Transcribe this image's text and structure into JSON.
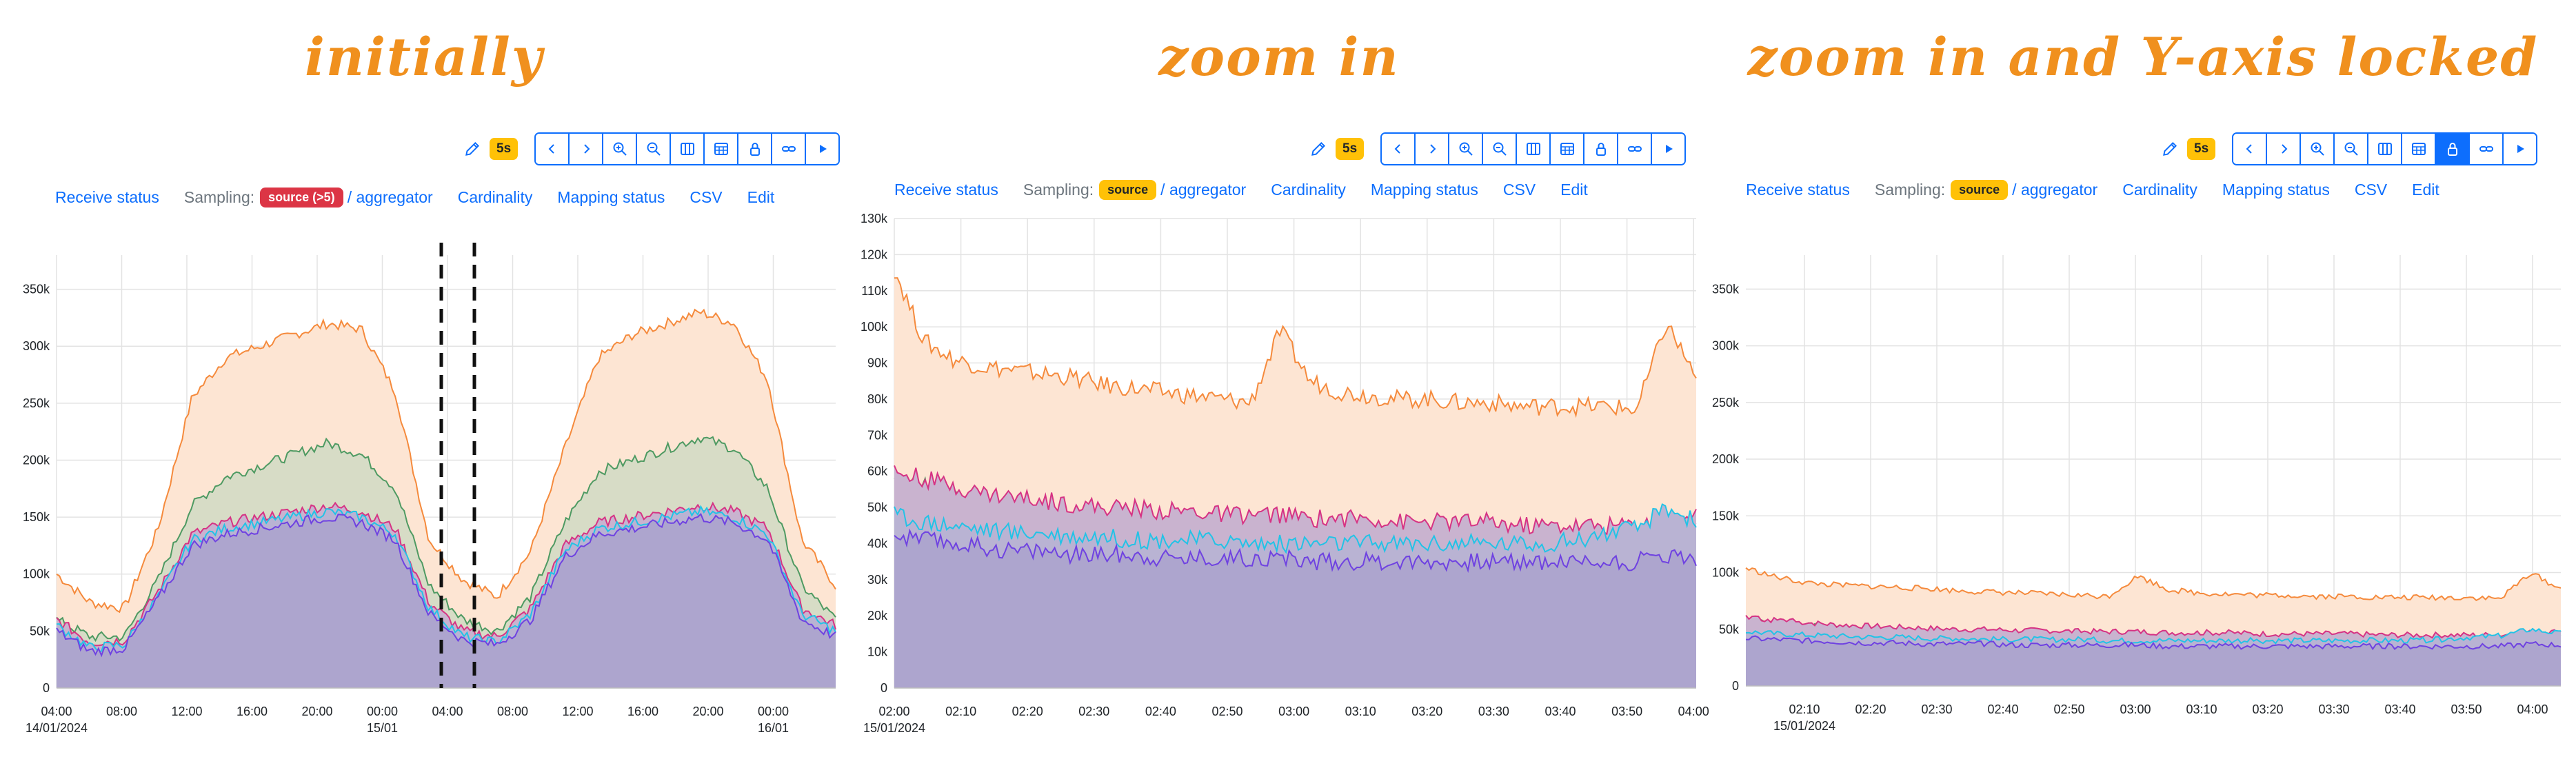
{
  "panels": [
    {
      "caption": "initially",
      "toolbar": {
        "badge": "5s",
        "lock_active": false
      },
      "nav": {
        "receive": "Receive status",
        "sampling_label": "Sampling:",
        "source": "source (>5)",
        "source_color": "#dc3545",
        "source_text_color": "#ffffff",
        "aggregator": "/ aggregator",
        "cardinality": "Cardinality",
        "mapping": "Mapping status",
        "csv": "CSV",
        "edit": "Edit"
      },
      "chart_data": {
        "type": "area",
        "y_ticks": [
          "0",
          "50k",
          "100k",
          "150k",
          "200k",
          "250k",
          "300k",
          "350k"
        ],
        "ylim": [
          0,
          380000
        ],
        "x_ticks": [
          {
            "label": "04:00",
            "sub": "14/01/2024"
          },
          {
            "label": "08:00"
          },
          {
            "label": "12:00"
          },
          {
            "label": "16:00"
          },
          {
            "label": "20:00"
          },
          {
            "label": "00:00",
            "sub": "15/01"
          },
          {
            "label": "04:00"
          },
          {
            "label": "08:00"
          },
          {
            "label": "12:00"
          },
          {
            "label": "16:00"
          },
          {
            "label": "20:00"
          },
          {
            "label": "00:00",
            "sub": "16/01"
          }
        ],
        "series": [
          {
            "color": "#f58a3c",
            "fill": "#fde5d3",
            "values": [
              100000,
              75000,
              70000,
              140000,
              255000,
              290000,
              300000,
              310000,
              320000,
              315000,
              260000,
              130000,
              95000,
              80000,
              120000,
              210000,
              290000,
              310000,
              320000,
              330000,
              320000,
              270000,
              130000,
              90000
            ]
          },
          {
            "color": "#4e9a62",
            "fill": "#d7dcc6",
            "values": [
              60000,
              45000,
              45000,
              95000,
              160000,
              185000,
              195000,
              205000,
              215000,
              205000,
              175000,
              90000,
              60000,
              50000,
              80000,
              145000,
              190000,
              200000,
              210000,
              220000,
              210000,
              175000,
              90000,
              60000
            ]
          },
          {
            "color": "#d63384",
            "fill": "#c9b3cf",
            "values": [
              60000,
              40000,
              42000,
              85000,
              135000,
              145000,
              150000,
              155000,
              160000,
              155000,
              140000,
              75000,
              50000,
              45000,
              70000,
              125000,
              145000,
              150000,
              155000,
              160000,
              155000,
              140000,
              70000,
              55000
            ]
          },
          {
            "color": "#22c3e6",
            "fill": "#b9b3d3",
            "values": [
              55000,
              35000,
              38000,
              80000,
              130000,
              140000,
              145000,
              150000,
              155000,
              150000,
              135000,
              70000,
              45000,
              40000,
              65000,
              120000,
              140000,
              145000,
              150000,
              155000,
              150000,
              135000,
              65000,
              50000
            ]
          },
          {
            "color": "#6f42e1",
            "fill": "#ada5ce",
            "values": [
              50000,
              32000,
              35000,
              78000,
              125000,
              135000,
              140000,
              145000,
              150000,
              145000,
              130000,
              65000,
              42000,
              38000,
              60000,
              115000,
              135000,
              140000,
              145000,
              150000,
              145000,
              130000,
              60000,
              45000
            ]
          }
        ]
      }
    },
    {
      "caption": "zoom in",
      "toolbar": {
        "badge": "5s",
        "lock_active": false
      },
      "nav": {
        "receive": "Receive status",
        "sampling_label": "Sampling:",
        "source": "source",
        "source_color": "#ffc107",
        "source_text_color": "#212529",
        "aggregator": "/ aggregator",
        "cardinality": "Cardinality",
        "mapping": "Mapping status",
        "csv": "CSV",
        "edit": "Edit"
      },
      "chart_data": {
        "type": "area",
        "y_ticks": [
          "0",
          "10k",
          "20k",
          "30k",
          "40k",
          "50k",
          "60k",
          "70k",
          "80k",
          "90k",
          "100k",
          "110k",
          "120k",
          "130k"
        ],
        "ylim": [
          0,
          130000
        ],
        "x_ticks": [
          {
            "label": "02:00",
            "sub": "15/01/2024"
          },
          {
            "label": "02:10"
          },
          {
            "label": "02:20"
          },
          {
            "label": "02:30"
          },
          {
            "label": "02:40"
          },
          {
            "label": "02:50"
          },
          {
            "label": "03:00"
          },
          {
            "label": "03:10"
          },
          {
            "label": "03:20"
          },
          {
            "label": "03:30"
          },
          {
            "label": "03:40"
          },
          {
            "label": "03:50"
          },
          {
            "label": "04:00"
          }
        ],
        "series": [
          {
            "color": "#f58a3c",
            "fill": "#fde5d3",
            "values": [
              116000,
              96000,
              91000,
              89000,
              88000,
              87000,
              86000,
              84000,
              83000,
              82000,
              81000,
              80000,
              79000,
              99000,
              85000,
              82000,
              81000,
              80000,
              80000,
              79000,
              79000,
              78000,
              78000,
              78000,
              78000,
              77000,
              101000,
              86000
            ]
          },
          {
            "color": "#4e9a62",
            "fill": "#d7dcc6",
            "values": [
              56000,
              56000,
              53000,
              51000,
              49000,
              48000,
              47000,
              46000,
              45000,
              45000,
              44000,
              44000,
              43000,
              43000,
              42000,
              42000,
              42000,
              41000,
              41000,
              41000,
              41000,
              40000,
              40000,
              40000,
              40000,
              40000,
              46000,
              45000
            ]
          },
          {
            "color": "#d63384",
            "fill": "#c9b3cf",
            "values": [
              60000,
              58000,
              56000,
              54000,
              53000,
              52000,
              51000,
              50000,
              50000,
              49000,
              49000,
              48000,
              48000,
              48000,
              47000,
              47000,
              47000,
              46000,
              46000,
              46000,
              46000,
              45000,
              45000,
              45000,
              45000,
              45000,
              47000,
              48000
            ]
          },
          {
            "color": "#22c3e6",
            "fill": "#b9b3d3",
            "values": [
              48000,
              46000,
              45000,
              44000,
              43000,
              43000,
              42000,
              42000,
              41000,
              41000,
              41000,
              41000,
              40000,
              40000,
              40000,
              40000,
              40000,
              40000,
              40000,
              40000,
              40000,
              40000,
              40000,
              41000,
              43000,
              44000,
              50000,
              46000
            ]
          },
          {
            "color": "#6f42e1",
            "fill": "#ada5ce",
            "values": [
              42000,
              41000,
              40000,
              39000,
              38000,
              38000,
              37000,
              37000,
              37000,
              36000,
              36000,
              36000,
              36000,
              36000,
              35000,
              35000,
              35000,
              35000,
              35000,
              35000,
              35000,
              35000,
              35000,
              35000,
              35000,
              35000,
              37000,
              36000
            ]
          }
        ]
      }
    },
    {
      "caption": "zoom in and Y-axis locked",
      "toolbar": {
        "badge": "5s",
        "lock_active": true
      },
      "nav": {
        "receive": "Receive status",
        "sampling_label": "Sampling:",
        "source": "source",
        "source_color": "#ffc107",
        "source_text_color": "#212529",
        "aggregator": "/ aggregator",
        "cardinality": "Cardinality",
        "mapping": "Mapping status",
        "csv": "CSV",
        "edit": "Edit"
      },
      "chart_data": {
        "type": "area",
        "y_ticks": [
          "0",
          "50k",
          "100k",
          "150k",
          "200k",
          "250k",
          "300k",
          "350k"
        ],
        "ylim": [
          0,
          380000
        ],
        "x_ticks": [
          {
            "label": "02:10",
            "sub": "15/01/2024"
          },
          {
            "label": "02:20"
          },
          {
            "label": "02:30"
          },
          {
            "label": "02:40"
          },
          {
            "label": "02:50"
          },
          {
            "label": "03:00"
          },
          {
            "label": "03:10"
          },
          {
            "label": "03:20"
          },
          {
            "label": "03:30"
          },
          {
            "label": "03:40"
          },
          {
            "label": "03:50"
          },
          {
            "label": "04:00"
          }
        ],
        "series": [
          {
            "color": "#f58a3c",
            "fill": "#fde5d3",
            "values": [
              104000,
              96000,
              91000,
              89000,
              88000,
              87000,
              86000,
              84000,
              83000,
              82000,
              81000,
              80000,
              79000,
              97000,
              85000,
              82000,
              81000,
              80000,
              80000,
              79000,
              79000,
              78000,
              78000,
              78000,
              78000,
              77000,
              100000,
              85000
            ]
          },
          {
            "color": "#4e9a62",
            "fill": "#d7dcc6",
            "values": [
              56000,
              56000,
              53000,
              51000,
              49000,
              48000,
              47000,
              46000,
              45000,
              45000,
              44000,
              44000,
              43000,
              43000,
              42000,
              42000,
              42000,
              41000,
              41000,
              41000,
              41000,
              40000,
              40000,
              40000,
              40000,
              40000,
              46000,
              45000
            ]
          },
          {
            "color": "#d63384",
            "fill": "#c9b3cf",
            "values": [
              60000,
              58000,
              56000,
              54000,
              53000,
              52000,
              51000,
              50000,
              50000,
              49000,
              49000,
              48000,
              48000,
              48000,
              47000,
              47000,
              47000,
              46000,
              46000,
              46000,
              46000,
              45000,
              45000,
              45000,
              45000,
              45000,
              47000,
              48000
            ]
          },
          {
            "color": "#22c3e6",
            "fill": "#b9b3d3",
            "values": [
              48000,
              46000,
              45000,
              44000,
              43000,
              43000,
              42000,
              42000,
              41000,
              41000,
              41000,
              41000,
              40000,
              40000,
              40000,
              40000,
              40000,
              40000,
              40000,
              40000,
              40000,
              40000,
              40000,
              41000,
              43000,
              44000,
              50000,
              46000
            ]
          },
          {
            "color": "#6f42e1",
            "fill": "#ada5ce",
            "values": [
              42000,
              41000,
              40000,
              39000,
              38000,
              38000,
              37000,
              37000,
              37000,
              36000,
              36000,
              36000,
              36000,
              36000,
              35000,
              35000,
              35000,
              35000,
              35000,
              35000,
              35000,
              35000,
              35000,
              35000,
              35000,
              35000,
              37000,
              36000
            ]
          }
        ]
      }
    }
  ]
}
